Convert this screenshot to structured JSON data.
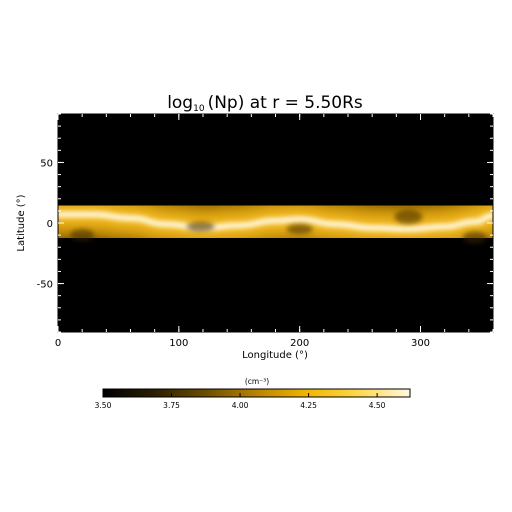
{
  "chart_data": {
    "type": "heatmap",
    "title": {
      "prefix": "log",
      "subscript": "10",
      "rest": "(Np) at r = 5.50Rs"
    },
    "xlabel": "Longitude (°)",
    "ylabel": "Latitude (°)",
    "xlim": [
      0,
      360
    ],
    "ylim": [
      -90,
      90
    ],
    "x_ticks": [
      0,
      100,
      200,
      300
    ],
    "y_ticks": [
      50,
      0,
      -50
    ],
    "x_tick_labels": [
      "0",
      "100",
      "200",
      "300"
    ],
    "y_tick_labels": [
      "50",
      "0",
      "-50"
    ],
    "grid": false,
    "colorbar": {
      "label": "(cm⁻³)",
      "range": [
        3.5,
        4.62
      ],
      "ticks": [
        3.5,
        3.75,
        4.0,
        4.25,
        4.5
      ],
      "tick_labels": [
        "3.50",
        "3.75",
        "4.00",
        "4.25",
        "4.50"
      ],
      "colormap": [
        "#000000",
        "#2b1f00",
        "#6b4d00",
        "#b88400",
        "#f2b600",
        "#ffd84d",
        "#fff8e0"
      ]
    },
    "current_sheet": {
      "longitude": [
        0,
        30,
        60,
        90,
        120,
        150,
        180,
        200,
        230,
        260,
        290,
        320,
        345,
        360
      ],
      "latitude": [
        7,
        7,
        4,
        -1,
        -4,
        -2,
        2,
        3,
        -1,
        -4,
        -5,
        -3,
        1,
        6
      ]
    },
    "background_level": 3.5,
    "peak_level": 4.62
  }
}
